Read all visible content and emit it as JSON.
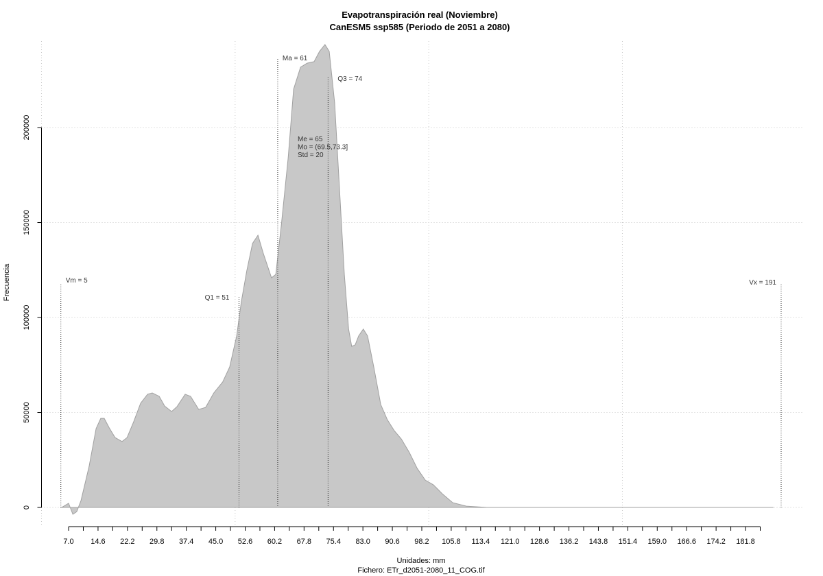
{
  "chart_data": {
    "type": "area",
    "title": "Evapotranspiración real (Noviembre)",
    "subtitle": "CanESM5 ssp585 (Periodo de 2051 a 2080)",
    "x_label": "Unidades: mm",
    "caption": "Fichero: ETr_d2051-2080_11_COG.tif",
    "y_label": "Frecuencia",
    "color": "#c8c8c8",
    "grid": true,
    "xlim": [
      0,
      196.6
    ],
    "ylim": [
      -10100,
      245500
    ],
    "yticks": [
      0,
      50000,
      100000,
      150000,
      200000
    ],
    "xgrid": [
      0,
      50,
      100,
      150
    ],
    "xticks": [
      {
        "value": 7.0,
        "label": "7.0"
      },
      {
        "value": 14.6,
        "label": "14.6"
      },
      {
        "value": 22.2,
        "label": "22.2"
      },
      {
        "value": 29.8,
        "label": "29.8"
      },
      {
        "value": 37.4,
        "label": "37.4"
      },
      {
        "value": 45.0,
        "label": "45.0"
      },
      {
        "value": 52.6,
        "label": "52.6"
      },
      {
        "value": 60.2,
        "label": "60.2"
      },
      {
        "value": 67.8,
        "label": "67.8"
      },
      {
        "value": 75.4,
        "label": "75.4"
      },
      {
        "value": 83.0,
        "label": "83.0"
      },
      {
        "value": 90.6,
        "label": "90.6"
      },
      {
        "value": 98.2,
        "label": "98.2"
      },
      {
        "value": 105.8,
        "label": "105.8"
      },
      {
        "value": 113.4,
        "label": "113.4"
      },
      {
        "value": 121.0,
        "label": "121.0"
      },
      {
        "value": 128.6,
        "label": "128.6"
      },
      {
        "value": 136.2,
        "label": "136.2"
      },
      {
        "value": 143.8,
        "label": "143.8"
      },
      {
        "value": 151.4,
        "label": "151.4"
      },
      {
        "value": 159.0,
        "label": "159.0"
      },
      {
        "value": 166.6,
        "label": "166.6"
      },
      {
        "value": 174.2,
        "label": "174.2"
      },
      {
        "value": 181.8,
        "label": "181.8"
      }
    ],
    "xticks_minor": [
      10.8,
      18.4,
      26,
      33.6,
      41.2,
      48.8,
      56.4,
      64,
      71.6,
      79.2,
      86.8,
      94.4,
      102,
      109.6,
      117.2,
      124.8,
      132.4,
      140,
      147.6,
      155.2,
      162.8,
      170.4,
      178,
      185.6
    ],
    "x": [
      5.2,
      7.0,
      8.1,
      9.1,
      10.2,
      12.3,
      14.1,
      15.3,
      16.2,
      17.6,
      19.0,
      20.8,
      22.1,
      23.8,
      25.6,
      27.4,
      28.6,
      30.4,
      31.8,
      33.6,
      35.0,
      37.1,
      38.5,
      40.6,
      42.4,
      44.5,
      46.8,
      48.6,
      50.4,
      51.6,
      53.0,
      54.5,
      55.9,
      57.3,
      59.4,
      60.5,
      61.9,
      63.7,
      65.1,
      66.9,
      68.6,
      70.4,
      71.8,
      73.2,
      74.3,
      75.7,
      77.0,
      78.2,
      79.3,
      80.1,
      81.0,
      81.9,
      83.1,
      84.2,
      85.8,
      87.6,
      89.3,
      91.1,
      92.9,
      95.0,
      97.0,
      99.1,
      101.2,
      103.5,
      106.2,
      109.7,
      115.0,
      189.0
    ],
    "values": [
      0,
      2200,
      -3600,
      -2200,
      3600,
      21700,
      41500,
      46900,
      46900,
      41500,
      36800,
      34700,
      36800,
      45100,
      54900,
      59600,
      60300,
      58500,
      53400,
      50500,
      53100,
      59600,
      58500,
      51600,
      52700,
      60300,
      66100,
      74000,
      90300,
      108300,
      124500,
      139000,
      143300,
      133600,
      120900,
      122700,
      148000,
      184100,
      220200,
      231800,
      233900,
      234700,
      240100,
      243700,
      240100,
      213000,
      166100,
      122700,
      93900,
      84800,
      85600,
      90300,
      93900,
      90300,
      74000,
      54200,
      46200,
      40400,
      36100,
      28900,
      20600,
      14400,
      11900,
      7200,
      2500,
      700,
      0,
      0
    ],
    "markers": [
      {
        "label": "Vm = 5",
        "x": 5
      },
      {
        "label": "Q1 = 51",
        "x": 51
      },
      {
        "label": "Ma = 61",
        "x": 61
      },
      {
        "label": "Q3 = 74",
        "x": 74
      },
      {
        "label": "Vx = 191",
        "x": 191
      }
    ],
    "stats": [
      "Me = 65",
      "Mo = (69.5,73.3]",
      "Std = 20"
    ]
  }
}
